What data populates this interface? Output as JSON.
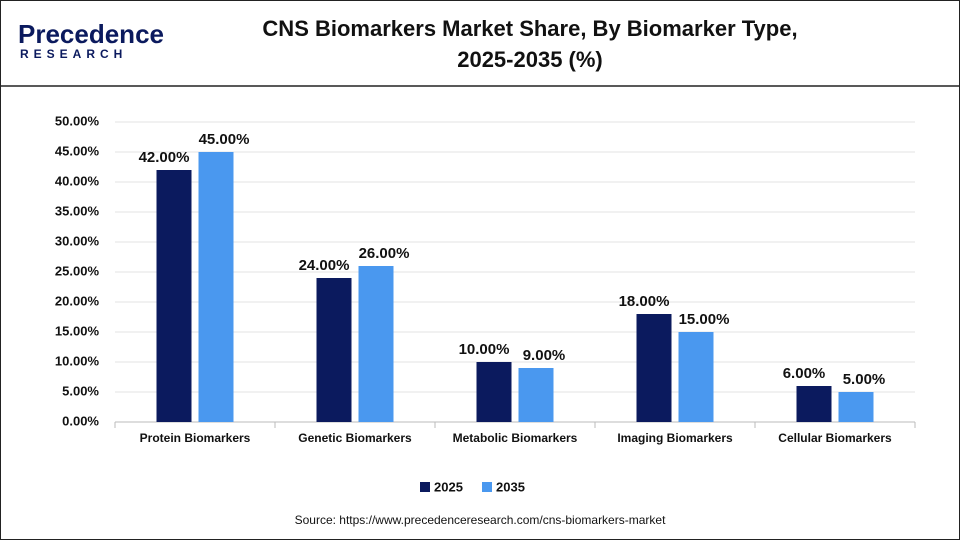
{
  "logo": {
    "brand": "Precedence",
    "tagline": "RESEARCH"
  },
  "chart_data": {
    "type": "bar",
    "title": [
      "CNS Biomarkers Market Share, By Biomarker Type,",
      "2025-2035 (%)"
    ],
    "categories": [
      "Protein Biomarkers",
      "Genetic Biomarkers",
      "Metabolic Biomarkers",
      "Imaging Biomarkers",
      "Cellular Biomarkers"
    ],
    "series": [
      {
        "name": "2025",
        "color": "#0b1a5e",
        "values": [
          42,
          24,
          10,
          18,
          6
        ],
        "value_labels": [
          "42.00%",
          "24.00%",
          "10.00%",
          "18.00%",
          "6.00%"
        ]
      },
      {
        "name": "2035",
        "color": "#4a98ef",
        "values": [
          45,
          26,
          9,
          15,
          5
        ],
        "value_labels": [
          "45.00%",
          "26.00%",
          "9.00%",
          "15.00%",
          "5.00%"
        ]
      }
    ],
    "ylim": [
      0,
      50
    ],
    "yticks": [
      {
        "value": 0,
        "label": "0.00%"
      },
      {
        "value": 5,
        "label": "5.00%"
      },
      {
        "value": 10,
        "label": "10.00%"
      },
      {
        "value": 15,
        "label": "15.00%"
      },
      {
        "value": 20,
        "label": "20.00%"
      },
      {
        "value": 25,
        "label": "25.00%"
      },
      {
        "value": 30,
        "label": "30.00%"
      },
      {
        "value": 35,
        "label": "35.00%"
      },
      {
        "value": 40,
        "label": "40.00%"
      },
      {
        "value": 45,
        "label": "45.00%"
      },
      {
        "value": 50,
        "label": "50.00%"
      }
    ],
    "grid": true,
    "legend": "bottom",
    "source": "Source: https://www.precedenceresearch.com/cns-biomarkers-market"
  }
}
